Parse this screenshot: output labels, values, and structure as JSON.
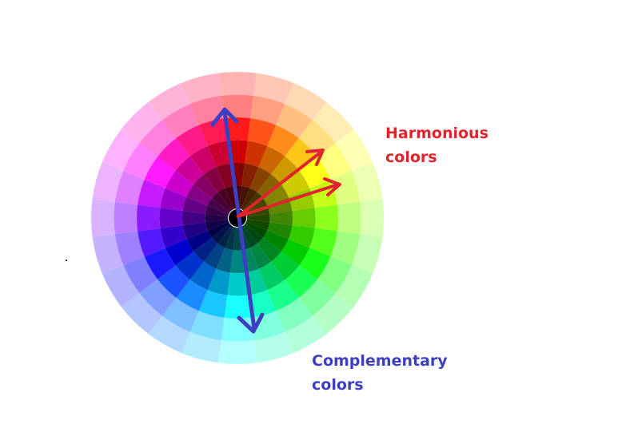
{
  "labels": {
    "harmonious": {
      "line1": "Harmonious",
      "line2": "colors",
      "color": "#e0242c"
    },
    "complementary": {
      "line1": "Complementary",
      "line2": "colors",
      "color": "#3d3fc0"
    }
  },
  "wheel": {
    "segments": 24,
    "rings": 6,
    "start_hue_top": 0,
    "direction": "clockwise",
    "center_color": "#000000"
  },
  "arrows": {
    "harmonious_color": "#e0242c",
    "complementary_color": "#3d3fc0"
  }
}
